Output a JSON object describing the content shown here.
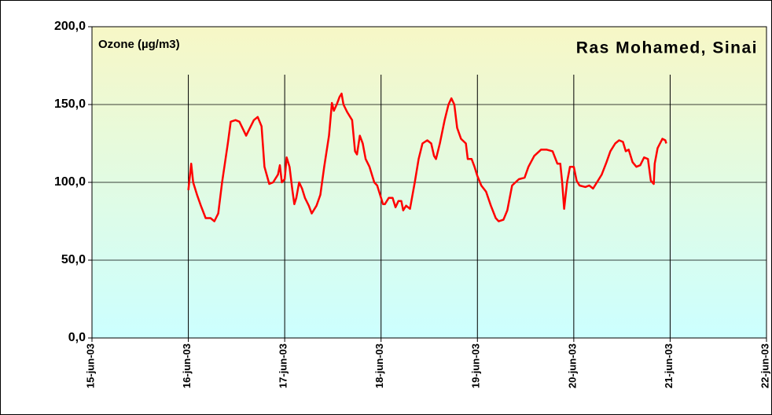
{
  "chart_data": {
    "type": "line",
    "title": "Ras Mohamed, Sinai",
    "ylabel": "Ozone (µg/m3)",
    "color": "#ff0000",
    "x": [
      1.0,
      1.03,
      1.05,
      1.09,
      1.13,
      1.18,
      1.23,
      1.27,
      1.31,
      1.35,
      1.41,
      1.44,
      1.49,
      1.53,
      1.6,
      1.64,
      1.68,
      1.72,
      1.76,
      1.79,
      1.84,
      1.88,
      1.93,
      1.95,
      1.97,
      2.0,
      2.02,
      2.05,
      2.08,
      2.1,
      2.12,
      2.15,
      2.18,
      2.21,
      2.25,
      2.28,
      2.33,
      2.37,
      2.41,
      2.46,
      2.49,
      2.51,
      2.54,
      2.57,
      2.59,
      2.61,
      2.65,
      2.7,
      2.73,
      2.75,
      2.78,
      2.81,
      2.84,
      2.88,
      2.93,
      2.96,
      3.0,
      3.02,
      3.04,
      3.08,
      3.12,
      3.15,
      3.18,
      3.21,
      3.23,
      3.26,
      3.3,
      3.35,
      3.39,
      3.43,
      3.48,
      3.52,
      3.55,
      3.57,
      3.61,
      3.66,
      3.7,
      3.73,
      3.76,
      3.79,
      3.83,
      3.88,
      3.9,
      3.94,
      3.97,
      4.0,
      4.04,
      4.09,
      4.14,
      4.19,
      4.22,
      4.27,
      4.31,
      4.36,
      4.43,
      4.49,
      4.53,
      4.59,
      4.66,
      4.72,
      4.78,
      4.83,
      4.86,
      4.88,
      4.9,
      4.93,
      4.96,
      5.0,
      5.03,
      5.06,
      5.12,
      5.16,
      5.2,
      5.24,
      5.29,
      5.34,
      5.38,
      5.43,
      5.47,
      5.51,
      5.54,
      5.57,
      5.61,
      5.65,
      5.69,
      5.73,
      5.77,
      5.8,
      5.83,
      5.84,
      5.87,
      5.92,
      5.95,
      5.96
    ],
    "values": [
      95,
      112,
      100,
      92,
      85,
      77,
      77,
      75,
      80,
      100,
      125,
      139,
      140,
      139,
      130,
      135,
      140,
      142,
      136,
      110,
      99,
      100,
      105,
      111,
      100,
      102,
      116,
      110,
      95,
      86,
      90,
      100,
      96,
      90,
      85,
      80,
      85,
      92,
      110,
      130,
      151,
      146,
      150,
      155,
      157,
      150,
      145,
      140,
      120,
      118,
      130,
      125,
      115,
      110,
      100,
      98,
      90,
      86,
      86,
      90,
      90,
      84,
      88,
      88,
      82,
      85,
      83,
      100,
      115,
      125,
      127,
      125,
      117,
      115,
      125,
      140,
      150,
      154,
      150,
      135,
      128,
      125,
      115,
      115,
      110,
      104,
      98,
      94,
      85,
      77,
      75,
      76,
      82,
      98,
      102,
      103,
      110,
      117,
      121,
      121,
      120,
      112,
      112,
      100,
      83,
      100,
      110,
      110,
      101,
      98,
      97,
      98,
      96,
      100,
      105,
      113,
      120,
      125,
      127,
      126,
      120,
      121,
      113,
      110,
      111,
      116,
      115,
      101,
      99,
      112,
      122,
      128,
      127,
      125
    ],
    "xlim": [
      0,
      7
    ],
    "xticks": [
      {
        "value": 0,
        "label": "15-jun-03"
      },
      {
        "value": 1,
        "label": "16-jun-03"
      },
      {
        "value": 2,
        "label": "17-jun-03"
      },
      {
        "value": 3,
        "label": "18-jun-03"
      },
      {
        "value": 4,
        "label": "19-jun-03"
      },
      {
        "value": 5,
        "label": "20-jun-03"
      },
      {
        "value": 6,
        "label": "21-jun-03"
      },
      {
        "value": 7,
        "label": "22-jun-03"
      }
    ],
    "ylim": [
      0,
      200
    ],
    "yticks": [
      {
        "value": 0,
        "label": "0,0"
      },
      {
        "value": 50,
        "label": "50,0"
      },
      {
        "value": 100,
        "label": "100,0"
      },
      {
        "value": 150,
        "label": "150,0"
      },
      {
        "value": 200,
        "label": "200,0"
      }
    ],
    "grid": true
  }
}
